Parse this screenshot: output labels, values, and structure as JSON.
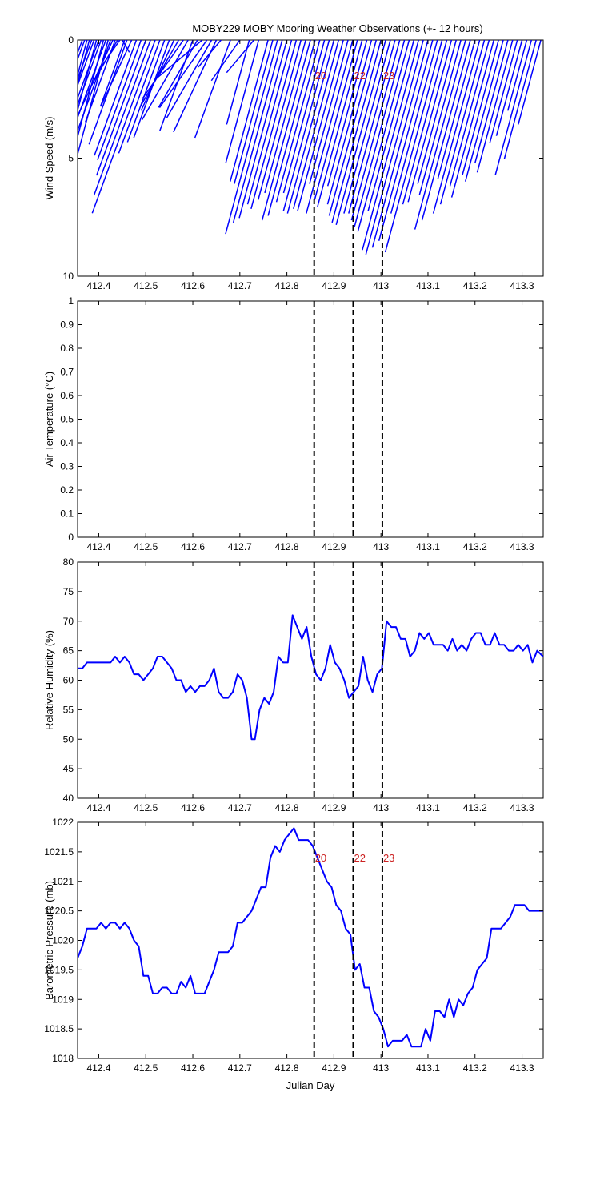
{
  "chart_data": [
    {
      "type": "line",
      "subtype": "wind-stick-plot",
      "title": "MOBY229 MOBY Mooring Weather Observations (+- 12 hours)",
      "ylabel": "Wind Speed (m/s)",
      "xlabel": "",
      "ylim": [
        0,
        10
      ],
      "y_reversed": true,
      "xlim": [
        412.355,
        413.345
      ],
      "xticks": [
        "412.4",
        "412.5",
        "412.6",
        "412.7",
        "412.8",
        "412.9",
        "413",
        "413.1",
        "413.2",
        "413.3"
      ],
      "yticks": [
        "0",
        "5",
        "10"
      ],
      "grid": false,
      "line_color": "#0000ff",
      "markers": [
        {
          "x": 412.858,
          "label": "20"
        },
        {
          "x": 412.941,
          "label": "22"
        },
        {
          "x": 413.003,
          "label": "23"
        }
      ],
      "sticks": {
        "base_y": 0,
        "x": [
          412.365,
          412.37,
          412.375,
          412.38,
          412.385,
          412.39,
          412.395,
          412.4,
          412.405,
          412.41,
          412.415,
          412.42,
          412.425,
          412.43,
          412.435,
          412.44,
          412.445,
          412.45,
          412.455,
          412.46,
          412.47,
          412.48,
          412.49,
          412.5,
          412.51,
          412.52,
          412.53,
          412.54,
          412.55,
          412.56,
          412.57,
          412.58,
          412.59,
          412.6,
          412.61,
          412.62,
          412.63,
          412.64,
          412.65,
          412.66,
          412.68,
          412.7,
          412.72,
          412.73,
          412.74,
          412.76,
          412.77,
          412.78,
          412.79,
          412.8,
          412.81,
          412.82,
          412.83,
          412.84,
          412.85,
          412.86,
          412.87,
          412.88,
          412.89,
          412.9,
          412.91,
          412.92,
          412.93,
          412.94,
          412.95,
          412.96,
          412.97,
          412.98,
          412.99,
          413.0,
          413.01,
          413.02,
          413.03,
          413.04,
          413.05,
          413.06,
          413.07,
          413.08,
          413.09,
          413.1,
          413.11,
          413.12,
          413.13,
          413.14,
          413.15,
          413.16,
          413.17,
          413.18,
          413.19,
          413.2,
          413.21,
          413.22,
          413.23,
          413.24,
          413.25,
          413.26,
          413.27,
          413.28,
          413.29,
          413.3,
          413.31,
          413.32,
          413.33,
          413.34
        ],
        "speed": [
          5.2,
          7.1,
          6.9,
          6.5,
          6.2,
          6.0,
          5.7,
          5.0,
          6.6,
          6.4,
          5.8,
          5.4,
          6.2,
          4.6,
          3.7,
          2.5,
          1.6,
          0.6,
          3.0,
          4.7,
          3.1,
          5.2,
          5.4,
          6.1,
          7.0,
          7.8,
          5.1,
          4.6,
          4.4,
          3.3,
          3.2,
          3.0,
          3.9,
          4.1,
          3.3,
          2.5,
          3.5,
          3.8,
          4.3,
          1.5,
          4.4,
          2.1,
          3.7,
          1.8,
          5.4,
          6.2,
          6.3,
          8.5,
          8.0,
          7.8,
          7.2,
          7.4,
          7.0,
          6.7,
          7.9,
          7.7,
          7.1,
          6.7,
          7.5,
          7.6,
          7.4,
          7.5,
          6.3,
          7.6,
          7.0,
          7.3,
          6.4,
          7.2,
          7.7,
          8.0,
          8.1,
          7.6,
          7.6,
          7.9,
          8.2,
          8.4,
          7.5,
          9.2,
          9.4,
          9.1,
          8.8,
          7.6,
          9.3,
          7.2,
          7.1,
          6.3,
          6.8,
          8.3,
          7.9,
          6.1,
          7.6,
          7.2,
          6.4,
          6.9,
          5.9,
          6.2,
          5.4,
          5.8,
          4.5,
          4.2,
          3.1,
          5.9,
          5.2,
          3.7
        ],
        "dir_deg": [
          200,
          200,
          195,
          195,
          200,
          200,
          195,
          200,
          200,
          195,
          200,
          195,
          200,
          205,
          200,
          210,
          215,
          150,
          200,
          200,
          205,
          200,
          200,
          200,
          200,
          200,
          200,
          200,
          200,
          205,
          210,
          215,
          210,
          200,
          210,
          230,
          215,
          210,
          205,
          220,
          200,
          215,
          195,
          220,
          195,
          195,
          195,
          195,
          195,
          195,
          195,
          195,
          195,
          195,
          195,
          195,
          195,
          195,
          195,
          195,
          195,
          195,
          195,
          195,
          195,
          195,
          195,
          195,
          195,
          195,
          195,
          195,
          195,
          195,
          195,
          195,
          195,
          195,
          195,
          195,
          195,
          195,
          195,
          195,
          195,
          195,
          195,
          195,
          195,
          195,
          195,
          195,
          195,
          195,
          195,
          195,
          195,
          195,
          195,
          195,
          195,
          195,
          195,
          195
        ]
      }
    },
    {
      "type": "line",
      "title": "",
      "ylabel": "Air Temperature (°C)",
      "xlabel": "",
      "ylim": [
        0,
        1
      ],
      "xlim": [
        412.355,
        413.345
      ],
      "xticks": [
        "412.4",
        "412.5",
        "412.6",
        "412.7",
        "412.8",
        "412.9",
        "413",
        "413.1",
        "413.2",
        "413.3"
      ],
      "yticks": [
        "0",
        "0.1",
        "0.2",
        "0.3",
        "0.4",
        "0.5",
        "0.6",
        "0.7",
        "0.8",
        "0.9",
        "1"
      ],
      "grid": false,
      "markers": [
        {
          "x": 412.858,
          "label": ""
        },
        {
          "x": 412.941,
          "label": ""
        },
        {
          "x": 413.003,
          "label": ""
        }
      ],
      "series": []
    },
    {
      "type": "line",
      "title": "",
      "ylabel": "Relative Humidity (%)",
      "xlabel": "",
      "ylim": [
        40,
        80
      ],
      "xlim": [
        412.355,
        413.345
      ],
      "xticks": [
        "412.4",
        "412.5",
        "412.6",
        "412.7",
        "412.8",
        "412.9",
        "413",
        "413.1",
        "413.2",
        "413.3"
      ],
      "yticks": [
        "40",
        "45",
        "50",
        "55",
        "60",
        "65",
        "70",
        "75",
        "80"
      ],
      "grid": false,
      "line_color": "#0000ff",
      "markers": [
        {
          "x": 412.858,
          "label": ""
        },
        {
          "x": 412.941,
          "label": ""
        },
        {
          "x": 413.003,
          "label": ""
        }
      ],
      "series": [
        {
          "x": [
            412.355,
            412.365,
            412.375,
            412.385,
            412.395,
            412.405,
            412.415,
            412.425,
            412.435,
            412.445,
            412.455,
            412.465,
            412.475,
            412.485,
            412.495,
            412.505,
            412.515,
            412.525,
            412.535,
            412.545,
            412.555,
            412.565,
            412.575,
            412.585,
            412.595,
            412.605,
            412.615,
            412.625,
            412.635,
            412.645,
            412.655,
            412.665,
            412.675,
            412.685,
            412.695,
            412.705,
            412.715,
            412.725,
            412.732,
            412.742,
            412.752,
            412.762,
            412.772,
            412.782,
            412.792,
            412.802,
            412.812,
            412.822,
            412.832,
            412.842,
            412.852,
            412.862,
            412.872,
            412.882,
            412.892,
            412.902,
            412.912,
            412.922,
            412.932,
            412.942,
            412.952,
            412.962,
            412.972,
            412.982,
            412.992,
            413.002,
            413.012,
            413.022,
            413.032,
            413.042,
            413.052,
            413.062,
            413.072,
            413.082,
            413.092,
            413.102,
            413.112,
            413.122,
            413.132,
            413.142,
            413.152,
            413.162,
            413.172,
            413.182,
            413.192,
            413.202,
            413.212,
            413.222,
            413.232,
            413.242,
            413.252,
            413.262,
            413.272,
            413.282,
            413.292,
            413.302,
            413.312,
            413.322,
            413.332,
            413.345
          ],
          "values": [
            62,
            62,
            63,
            63,
            63,
            63,
            63,
            63,
            64,
            63,
            64,
            63,
            61,
            61,
            60,
            61,
            62,
            64,
            64,
            63,
            62,
            60,
            60,
            58,
            59,
            58,
            59,
            59,
            60,
            62,
            58,
            57,
            57,
            58,
            61,
            60,
            57,
            50,
            50,
            55,
            57,
            56,
            58,
            64,
            63,
            63,
            71,
            69,
            67,
            69,
            64,
            61,
            60,
            62,
            66,
            63,
            62,
            60,
            57,
            58,
            59,
            64,
            60,
            58,
            61,
            62,
            70,
            69,
            69,
            67,
            67,
            64,
            65,
            68,
            67,
            68,
            66,
            66,
            66,
            65,
            67,
            65,
            66,
            65,
            67,
            68,
            68,
            66,
            66,
            68,
            66,
            66,
            65,
            65,
            66,
            65,
            66,
            63,
            65,
            64
          ]
        }
      ]
    },
    {
      "type": "line",
      "title": "",
      "ylabel": "Barometric Pressure (mb)",
      "xlabel": "Julian Day",
      "ylim": [
        1018,
        1022
      ],
      "xlim": [
        412.355,
        413.345
      ],
      "xticks": [
        "412.4",
        "412.5",
        "412.6",
        "412.7",
        "412.8",
        "412.9",
        "413",
        "413.1",
        "413.2",
        "413.3"
      ],
      "yticks": [
        "1018",
        "1018.5",
        "1019",
        "1019.5",
        "1020",
        "1020.5",
        "1021",
        "1021.5",
        "1022"
      ],
      "grid": false,
      "line_color": "#0000ff",
      "markers": [
        {
          "x": 412.858,
          "label": "20"
        },
        {
          "x": 412.941,
          "label": "22"
        },
        {
          "x": 413.003,
          "label": "23"
        }
      ],
      "series": [
        {
          "x": [
            412.355,
            412.365,
            412.375,
            412.385,
            412.395,
            412.405,
            412.415,
            412.425,
            412.435,
            412.445,
            412.455,
            412.465,
            412.475,
            412.485,
            412.495,
            412.505,
            412.515,
            412.525,
            412.535,
            412.545,
            412.555,
            412.565,
            412.575,
            412.585,
            412.595,
            412.605,
            412.615,
            412.625,
            412.635,
            412.645,
            412.655,
            412.665,
            412.675,
            412.685,
            412.695,
            412.705,
            412.715,
            412.725,
            412.735,
            412.745,
            412.755,
            412.765,
            412.775,
            412.785,
            412.795,
            412.805,
            412.815,
            412.825,
            412.835,
            412.845,
            412.855,
            412.865,
            412.875,
            412.885,
            412.895,
            412.905,
            412.915,
            412.925,
            412.935,
            412.945,
            412.955,
            412.965,
            412.975,
            412.985,
            412.995,
            413.005,
            413.015,
            413.025,
            413.035,
            413.045,
            413.055,
            413.065,
            413.075,
            413.085,
            413.095,
            413.105,
            413.115,
            413.125,
            413.135,
            413.145,
            413.155,
            413.165,
            413.175,
            413.185,
            413.195,
            413.205,
            413.215,
            413.225,
            413.235,
            413.245,
            413.255,
            413.265,
            413.275,
            413.285,
            413.295,
            413.305,
            413.315,
            413.325,
            413.335,
            413.345
          ],
          "values": [
            1019.7,
            1019.9,
            1020.2,
            1020.2,
            1020.2,
            1020.3,
            1020.2,
            1020.3,
            1020.3,
            1020.2,
            1020.3,
            1020.2,
            1020.0,
            1019.9,
            1019.4,
            1019.4,
            1019.1,
            1019.1,
            1019.2,
            1019.2,
            1019.1,
            1019.1,
            1019.3,
            1019.2,
            1019.4,
            1019.1,
            1019.1,
            1019.1,
            1019.3,
            1019.5,
            1019.8,
            1019.8,
            1019.8,
            1019.9,
            1020.3,
            1020.3,
            1020.4,
            1020.5,
            1020.7,
            1020.9,
            1020.9,
            1021.4,
            1021.6,
            1021.5,
            1021.7,
            1021.8,
            1021.9,
            1021.7,
            1021.7,
            1021.7,
            1021.6,
            1021.4,
            1021.2,
            1021.0,
            1020.9,
            1020.6,
            1020.5,
            1020.2,
            1020.1,
            1019.5,
            1019.6,
            1019.2,
            1019.2,
            1018.8,
            1018.7,
            1018.5,
            1018.2,
            1018.3,
            1018.3,
            1018.3,
            1018.4,
            1018.2,
            1018.2,
            1018.2,
            1018.5,
            1018.3,
            1018.8,
            1018.8,
            1018.7,
            1019.0,
            1018.7,
            1019.0,
            1018.9,
            1019.1,
            1019.2,
            1019.5,
            1019.6,
            1019.7,
            1020.2,
            1020.2,
            1020.2,
            1020.3,
            1020.4,
            1020.6,
            1020.6,
            1020.6,
            1020.5,
            1020.5,
            1020.5,
            1020.5
          ]
        }
      ]
    }
  ]
}
